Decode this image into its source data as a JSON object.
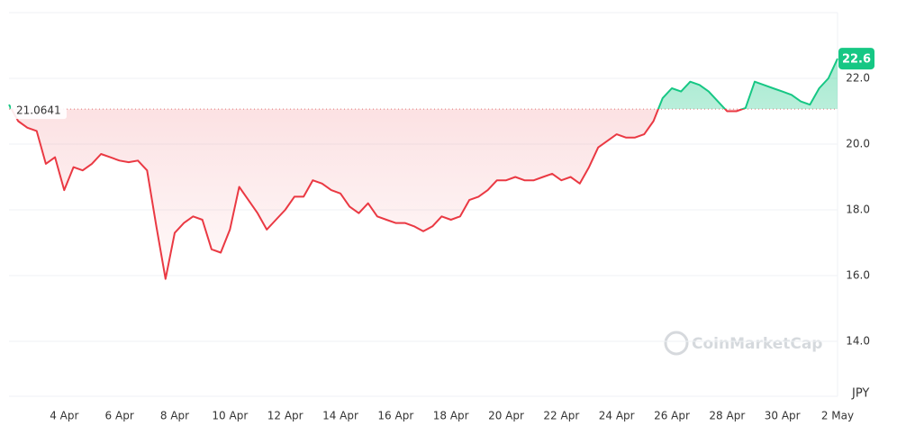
{
  "chart_data": {
    "type": "line",
    "currency": "JPY",
    "watermark": "CoinMarketCap",
    "baseline": 21.0641,
    "up_color": "#16c784",
    "down_color": "#ea3943",
    "categories": [
      null,
      null,
      null,
      null,
      null,
      null,
      "4 Apr",
      null,
      null,
      null,
      null,
      null,
      "6 Apr",
      null,
      null,
      null,
      null,
      null,
      "8 Apr",
      null,
      null,
      null,
      null,
      null,
      "10 Apr",
      null,
      null,
      null,
      null,
      null,
      "12 Apr",
      null,
      null,
      null,
      null,
      null,
      "14 Apr",
      null,
      null,
      null,
      null,
      null,
      "16 Apr",
      null,
      null,
      null,
      null,
      null,
      "18 Apr",
      null,
      null,
      null,
      null,
      null,
      "20 Apr",
      null,
      null,
      null,
      null,
      null,
      "22 Apr",
      null,
      null,
      null,
      null,
      null,
      "24 Apr",
      null,
      null,
      null,
      null,
      null,
      "26 Apr",
      null,
      null,
      null,
      null,
      null,
      "28 Apr",
      null,
      null,
      null,
      null,
      null,
      "30 Apr",
      null,
      null,
      null,
      null,
      null,
      "2 May"
    ],
    "series": [
      {
        "values": [
          21.2,
          20.7,
          20.5,
          20.4,
          19.4,
          19.6,
          18.6,
          19.3,
          19.2,
          19.4,
          19.7,
          19.6,
          19.5,
          19.45,
          19.5,
          19.2,
          17.5,
          15.9,
          17.3,
          17.6,
          17.8,
          17.7,
          16.8,
          16.7,
          17.4,
          18.7,
          18.3,
          17.9,
          17.4,
          17.7,
          18.0,
          18.4,
          18.4,
          18.9,
          18.8,
          18.6,
          18.5,
          18.1,
          17.9,
          18.2,
          17.8,
          17.7,
          17.6,
          17.6,
          17.5,
          17.35,
          17.5,
          17.8,
          17.7,
          17.8,
          18.3,
          18.4,
          18.6,
          18.9,
          18.9,
          19.0,
          18.9,
          18.9,
          19.0,
          19.1,
          18.9,
          19.0,
          18.8,
          19.3,
          19.9,
          20.1,
          20.3,
          20.2,
          20.2,
          20.3,
          20.7,
          21.4,
          21.7,
          21.6,
          21.9,
          21.8,
          21.6,
          21.3,
          21.0,
          21.0,
          21.1,
          21.9,
          21.8,
          21.7,
          21.6,
          21.5,
          21.3,
          21.2,
          21.7,
          22.0,
          22.6
        ]
      }
    ],
    "ylim": [
      12.33,
      24.0
    ],
    "yticks": [
      {
        "value": 14,
        "label": "14.0"
      },
      {
        "value": 16,
        "label": "16.0"
      },
      {
        "value": 18,
        "label": "18.0"
      },
      {
        "value": 20,
        "label": "20.0"
      },
      {
        "value": 22,
        "label": "22.0"
      }
    ],
    "grid": true
  }
}
